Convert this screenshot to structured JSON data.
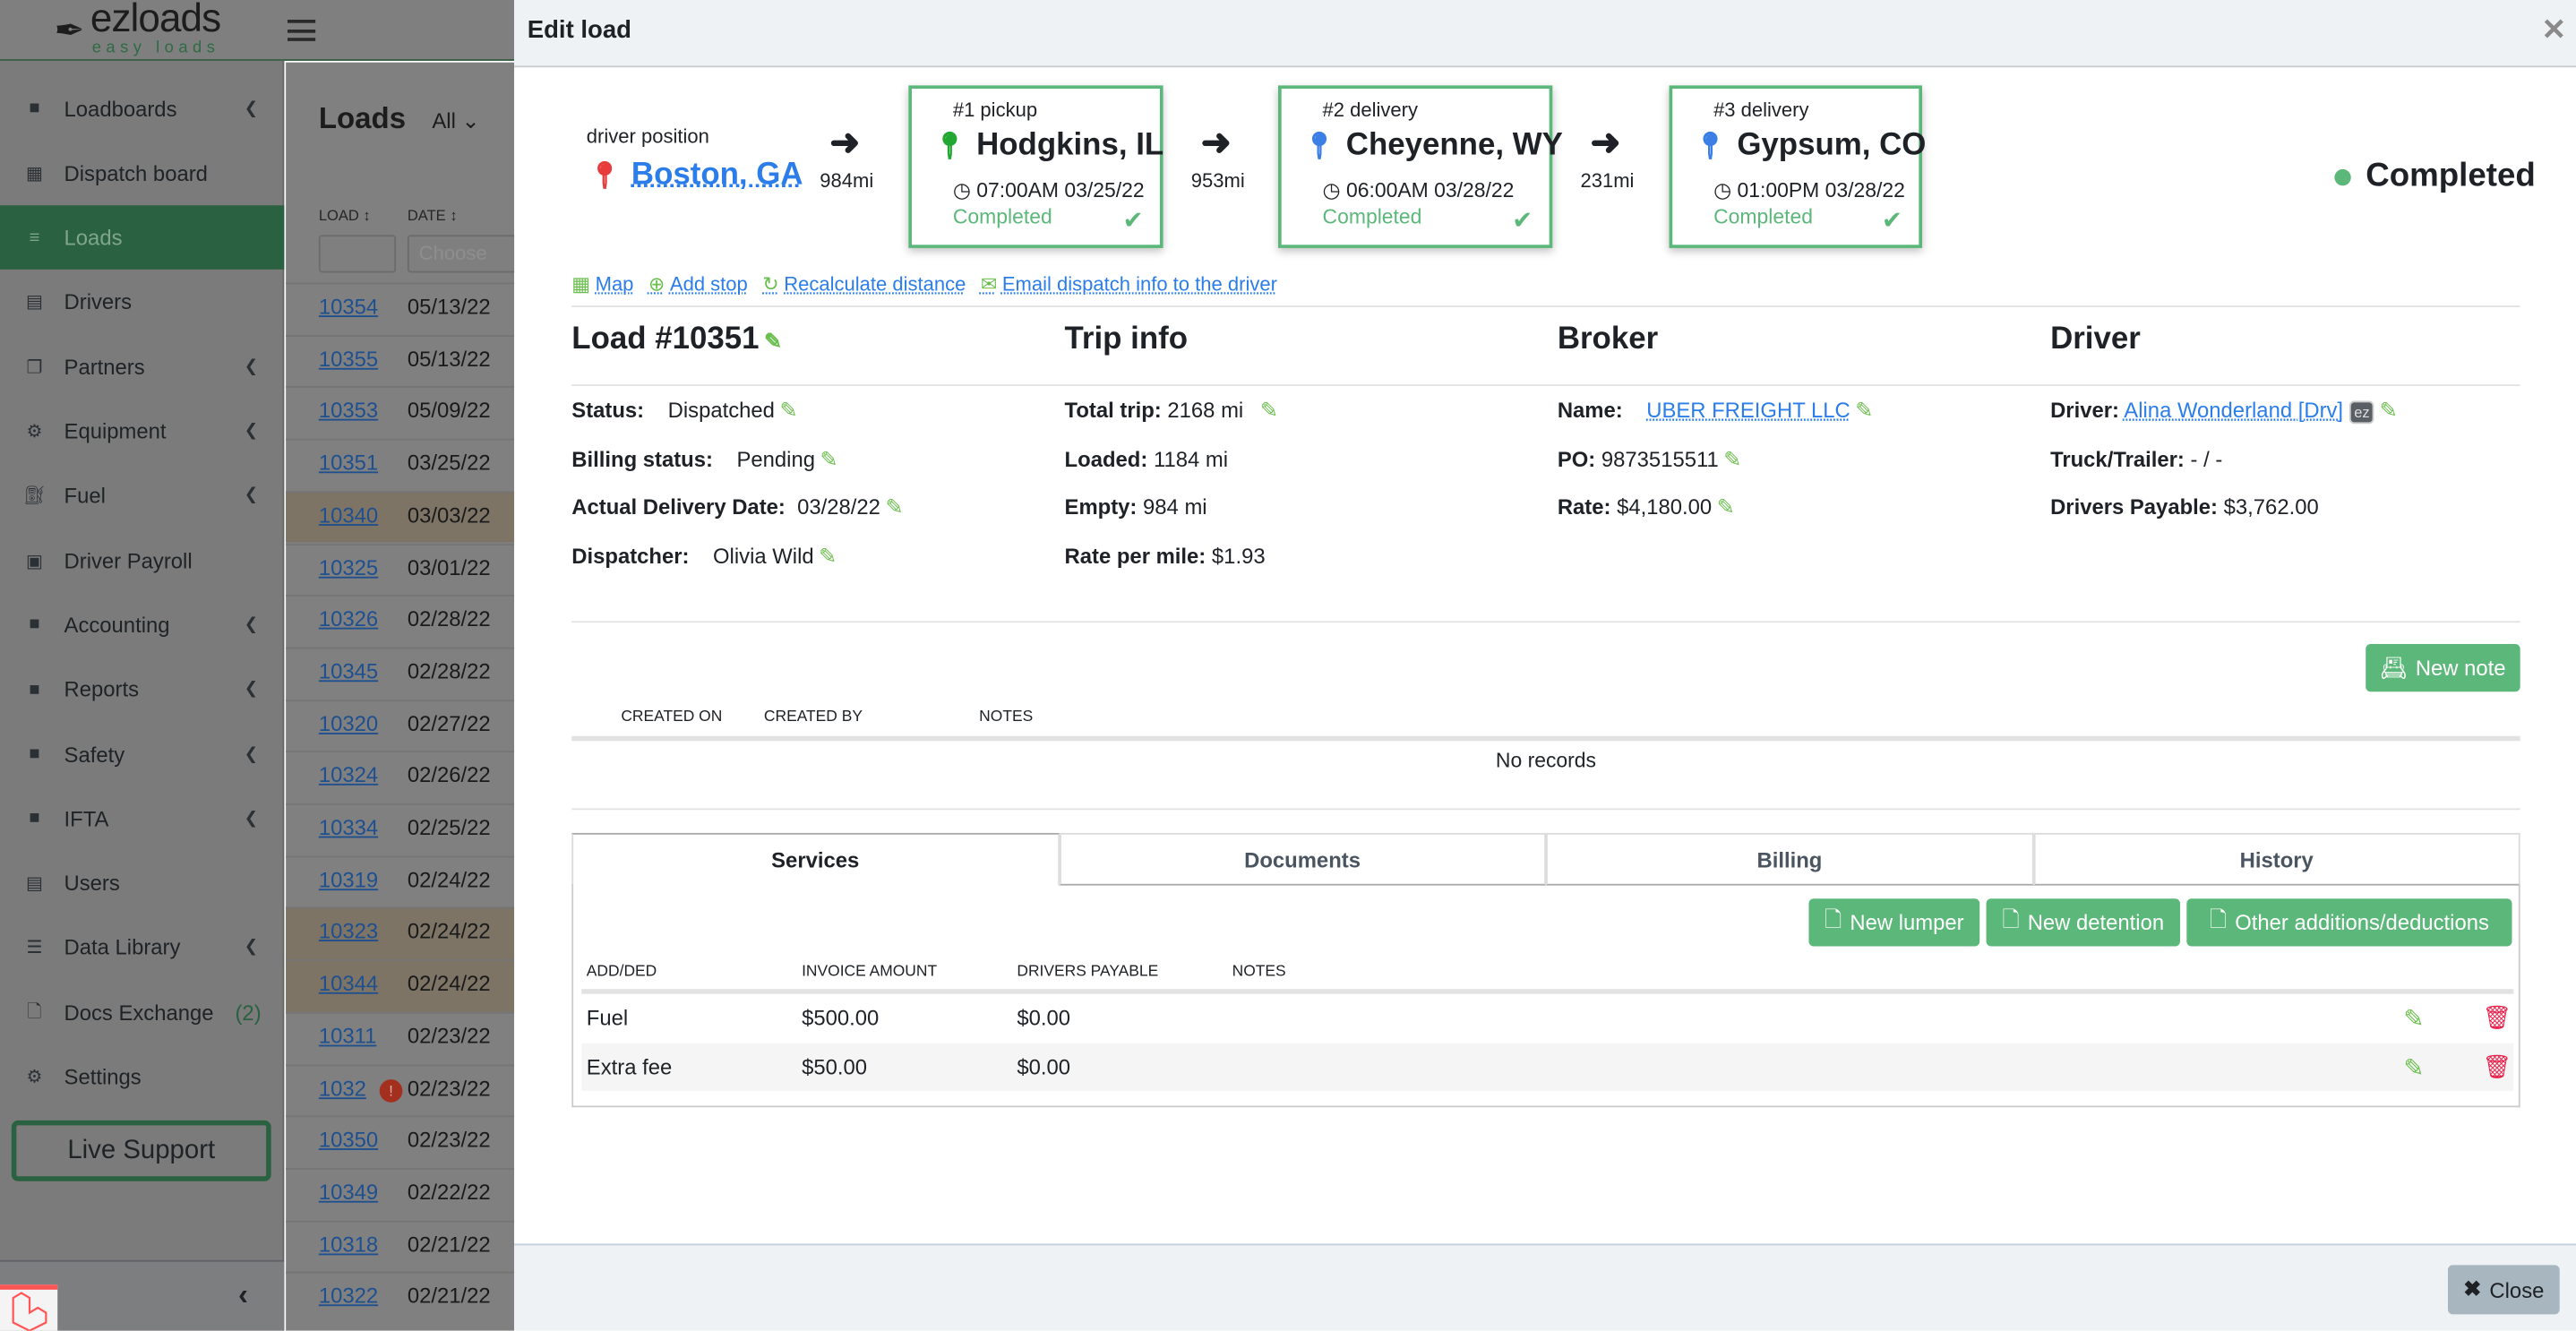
{
  "app": {
    "logo": "ezloads",
    "logo_tagline": "easy loads"
  },
  "sidebar": {
    "items": [
      {
        "label": "Loadboards",
        "icon": "folder-icon",
        "chevron": true
      },
      {
        "label": "Dispatch board",
        "icon": "calendar-icon",
        "chevron": false
      },
      {
        "label": "Loads",
        "icon": "signpost-icon",
        "chevron": false,
        "active": true
      },
      {
        "label": "Drivers",
        "icon": "id-card-icon",
        "chevron": false
      },
      {
        "label": "Partners",
        "icon": "handshake-icon",
        "chevron": true
      },
      {
        "label": "Equipment",
        "icon": "gears-icon",
        "chevron": true
      },
      {
        "label": "Fuel",
        "icon": "gas-pump-icon",
        "chevron": true
      },
      {
        "label": "Driver Payroll",
        "icon": "money-icon",
        "chevron": false
      },
      {
        "label": "Accounting",
        "icon": "folder-icon",
        "chevron": true
      },
      {
        "label": "Reports",
        "icon": "folder-icon",
        "chevron": true
      },
      {
        "label": "Safety",
        "icon": "folder-icon",
        "chevron": true
      },
      {
        "label": "IFTA",
        "icon": "folder-icon",
        "chevron": true
      },
      {
        "label": "Users",
        "icon": "id-card-icon",
        "chevron": false
      },
      {
        "label": "Data Library",
        "icon": "database-icon",
        "chevron": true
      },
      {
        "label": "Docs Exchange",
        "icon": "file-icon",
        "chevron": false,
        "badge": "(2)"
      },
      {
        "label": "Settings",
        "icon": "gear-icon",
        "chevron": false
      }
    ],
    "live_support": "Live Support"
  },
  "loads_list": {
    "title": "Loads",
    "filter": "All",
    "col_load": "LOAD",
    "col_date": "DATE",
    "date_placeholder": "Choose",
    "rows": [
      {
        "id": "10354",
        "date": "05/13/22"
      },
      {
        "id": "10355",
        "date": "05/13/22"
      },
      {
        "id": "10353",
        "date": "05/09/22"
      },
      {
        "id": "10351",
        "date": "03/25/22"
      },
      {
        "id": "10340",
        "date": "03/03/22",
        "highlight": true
      },
      {
        "id": "10325",
        "date": "03/01/22"
      },
      {
        "id": "10326",
        "date": "02/28/22"
      },
      {
        "id": "10345",
        "date": "02/28/22"
      },
      {
        "id": "10320",
        "date": "02/27/22"
      },
      {
        "id": "10324",
        "date": "02/26/22"
      },
      {
        "id": "10334",
        "date": "02/25/22"
      },
      {
        "id": "10319",
        "date": "02/24/22"
      },
      {
        "id": "10323",
        "date": "02/24/22",
        "highlight": true
      },
      {
        "id": "10344",
        "date": "02/24/22",
        "highlight": true
      },
      {
        "id": "10311",
        "date": "02/23/22"
      },
      {
        "id": "1032",
        "date": "02/23/22",
        "warning": true
      },
      {
        "id": "10350",
        "date": "02/23/22"
      },
      {
        "id": "10349",
        "date": "02/22/22"
      },
      {
        "id": "10318",
        "date": "02/21/22"
      },
      {
        "id": "10322",
        "date": "02/21/22"
      }
    ]
  },
  "modal": {
    "title": "Edit load",
    "close_label": "Close",
    "driver_position": {
      "label": "driver position",
      "city": "Boston, GA"
    },
    "legs": [
      "984mi",
      "953mi",
      "231mi"
    ],
    "stops": [
      {
        "kind": "#1 pickup",
        "city": "Hodgkins, IL",
        "time": "07:00AM 03/25/22",
        "status": "Completed",
        "pin_color": "#22a832"
      },
      {
        "kind": "#2 delivery",
        "city": "Cheyenne, WY",
        "time": "06:00AM 03/28/22",
        "status": "Completed",
        "pin_color": "#3b7fe6"
      },
      {
        "kind": "#3 delivery",
        "city": "Gypsum, CO",
        "time": "01:00PM 03/28/22",
        "status": "Completed",
        "pin_color": "#3b7fe6"
      }
    ],
    "load_status": "Completed",
    "links": [
      "Map",
      "Add stop",
      "Recalculate distance",
      "Email dispatch info to the driver"
    ],
    "load": {
      "title": "Load #10351",
      "status_label": "Status:",
      "status": "Dispatched",
      "billing_label": "Billing status:",
      "billing": "Pending",
      "delivery_label": "Actual Delivery Date:",
      "delivery": "03/28/22",
      "dispatcher_label": "Dispatcher:",
      "dispatcher": "Olivia Wild"
    },
    "trip": {
      "title": "Trip info",
      "total_label": "Total trip:",
      "total": "2168 mi",
      "loaded_label": "Loaded:",
      "loaded": "1184 mi",
      "empty_label": "Empty:",
      "empty": "984 mi",
      "rpm_label": "Rate per mile:",
      "rpm": "$1.93"
    },
    "broker": {
      "title": "Broker",
      "name_label": "Name:",
      "name": "UBER FREIGHT LLC",
      "po_label": "PO:",
      "po": "9873515511",
      "rate_label": "Rate:",
      "rate": "$4,180.00"
    },
    "driver": {
      "title": "Driver",
      "driver_label": "Driver:",
      "driver": "Alina Wonderland [Drv]",
      "ez_badge": "ez",
      "truck_label": "Truck/Trailer:",
      "truck": "- / -",
      "payable_label": "Drivers Payable:",
      "payable": "$3,762.00"
    },
    "notes": {
      "new_note": "New note",
      "headers": [
        "CREATED ON",
        "CREATED BY",
        "NOTES"
      ],
      "empty": "No records"
    },
    "tabs": [
      "Services",
      "Documents",
      "Billing",
      "History"
    ],
    "services": {
      "buttons": [
        "New lumper",
        "New detention",
        "Other additions/deductions"
      ],
      "headers": [
        "ADD/DED",
        "INVOICE AMOUNT",
        "DRIVERS PAYABLE",
        "NOTES"
      ],
      "rows": [
        {
          "name": "Fuel",
          "invoice": "$500.00",
          "payable": "$0.00",
          "notes": ""
        },
        {
          "name": "Extra fee",
          "invoice": "$50.00",
          "payable": "$0.00",
          "notes": ""
        }
      ]
    }
  },
  "colors": {
    "accent": "#5cb87a",
    "link": "#2b7de9",
    "danger": "#e8204a",
    "sidebar_active": "#2a6140"
  }
}
